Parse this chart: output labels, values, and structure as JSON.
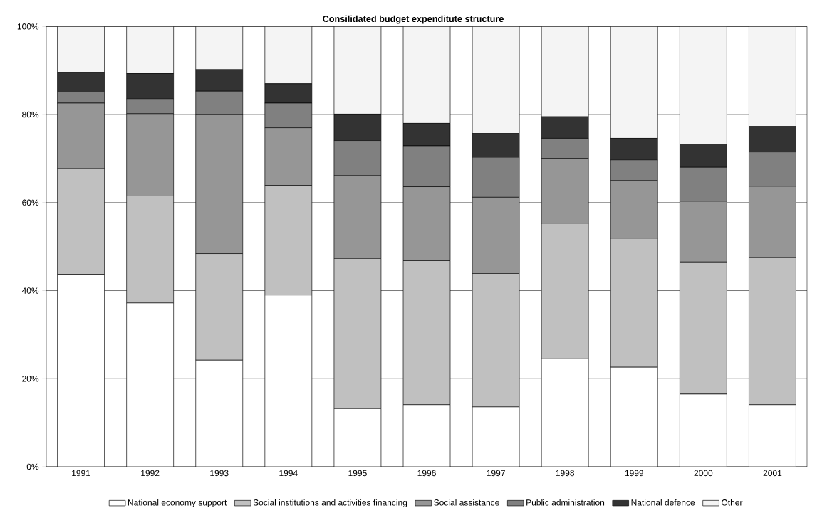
{
  "chart_data": {
    "type": "bar",
    "title": "Consilidated budget expenditute structure",
    "stacked": true,
    "categories": [
      "1991",
      "1992",
      "1993",
      "1994",
      "1995",
      "1996",
      "1997",
      "1998",
      "1999",
      "2000",
      "2001"
    ],
    "series": [
      {
        "name": "National economy support",
        "color": "#ffffff",
        "values": [
          43.7,
          37.2,
          24.2,
          39.0,
          13.2,
          14.1,
          13.6,
          24.5,
          22.6,
          16.5,
          14.1
        ]
      },
      {
        "name": "Social institutions and activities financing",
        "color": "#c0c0c0",
        "values": [
          24.0,
          24.3,
          24.2,
          24.9,
          34.1,
          32.7,
          30.3,
          30.8,
          29.3,
          30.0,
          33.4
        ]
      },
      {
        "name": "Social assistance",
        "color": "#969696",
        "values": [
          14.9,
          18.7,
          31.6,
          13.1,
          18.8,
          16.8,
          17.3,
          14.7,
          13.1,
          13.8,
          16.2
        ]
      },
      {
        "name": "Public administration",
        "color": "#808080",
        "values": [
          2.5,
          3.4,
          5.3,
          5.6,
          8.0,
          9.3,
          9.1,
          4.6,
          4.7,
          7.7,
          7.8
        ]
      },
      {
        "name": "National defence",
        "color": "#333333",
        "values": [
          4.5,
          5.7,
          4.9,
          4.4,
          6.0,
          5.1,
          5.4,
          4.9,
          4.9,
          5.3,
          5.8
        ]
      },
      {
        "name": "Other",
        "color": "#f4f4f4",
        "values": [
          10.4,
          10.7,
          9.8,
          13.0,
          19.9,
          22.0,
          24.3,
          20.5,
          25.4,
          26.7,
          22.7
        ]
      }
    ],
    "ylim": [
      0,
      100
    ],
    "yticks": [
      {
        "value": 0,
        "label": "0%"
      },
      {
        "value": 20,
        "label": "20%"
      },
      {
        "value": 40,
        "label": "40%"
      },
      {
        "value": 60,
        "label": "60%"
      },
      {
        "value": 80,
        "label": "80%"
      },
      {
        "value": 100,
        "label": "100%"
      }
    ],
    "grid": "y",
    "legend": "bottom"
  }
}
